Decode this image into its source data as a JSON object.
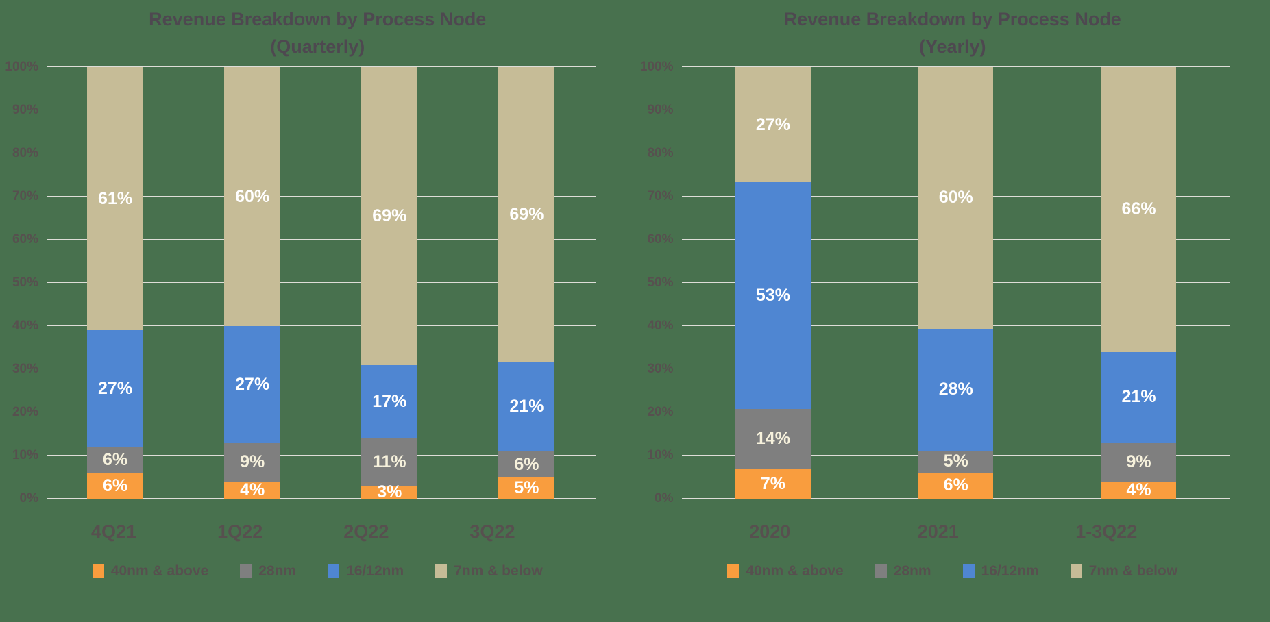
{
  "page": {
    "background": "#48714E",
    "grid_color": "#DEDDD8",
    "text_color": "#57504F",
    "title_color": "#4E4850"
  },
  "chart_data": [
    {
      "type": "bar",
      "stacked": true,
      "stacked_mode": "100%",
      "title": "Revenue Breakdown by Process Node (Quarterly)",
      "title_lines": [
        "Revenue Breakdown by Process Node",
        "(Quarterly)"
      ],
      "categories": [
        "4Q21",
        "1Q22",
        "2Q22",
        "3Q22"
      ],
      "series": [
        {
          "name": "40nm & above",
          "color": "#F99D3E",
          "label_color": "#FFFFFF",
          "values": [
            6,
            4,
            3,
            5
          ]
        },
        {
          "name": "28nm",
          "color": "#7F7F7F",
          "label_color": "#F6F1DC",
          "values": [
            6,
            9,
            11,
            6
          ]
        },
        {
          "name": "16/12nm",
          "color": "#4F86D2",
          "label_color": "#FFFFFF",
          "values": [
            27,
            27,
            17,
            21
          ]
        },
        {
          "name": "7nm & below",
          "color": "#C6BC97",
          "label_color": "#FFFFFF",
          "values": [
            61,
            60,
            69,
            69
          ]
        }
      ],
      "y_ticks": [
        "0%",
        "10%",
        "20%",
        "30%",
        "40%",
        "50%",
        "60%",
        "70%",
        "80%",
        "90%",
        "100%"
      ],
      "ylim": [
        0,
        100
      ],
      "value_suffix": "%",
      "grid": true,
      "legend_position": "bottom"
    },
    {
      "type": "bar",
      "stacked": true,
      "stacked_mode": "100%",
      "title": "Revenue Breakdown by Process Node (Yearly)",
      "title_lines": [
        "Revenue Breakdown by Process Node",
        "(Yearly)"
      ],
      "categories": [
        "2020",
        "2021",
        "1-3Q22"
      ],
      "series": [
        {
          "name": "40nm & above",
          "color": "#F99D3E",
          "label_color": "#FFFFFF",
          "values": [
            7,
            6,
            4
          ]
        },
        {
          "name": "28nm",
          "color": "#7F7F7F",
          "label_color": "#F6F1DC",
          "values": [
            14,
            5,
            9
          ]
        },
        {
          "name": "16/12nm",
          "color": "#4F86D2",
          "label_color": "#FFFFFF",
          "values": [
            53,
            28,
            21
          ]
        },
        {
          "name": "7nm & below",
          "color": "#C6BC97",
          "label_color": "#FFFFFF",
          "values": [
            27,
            60,
            66
          ]
        }
      ],
      "y_ticks": [
        "0%",
        "10%",
        "20%",
        "30%",
        "40%",
        "50%",
        "60%",
        "70%",
        "80%",
        "90%",
        "100%"
      ],
      "ylim": [
        0,
        100
      ],
      "value_suffix": "%",
      "grid": true,
      "legend_position": "bottom"
    }
  ]
}
